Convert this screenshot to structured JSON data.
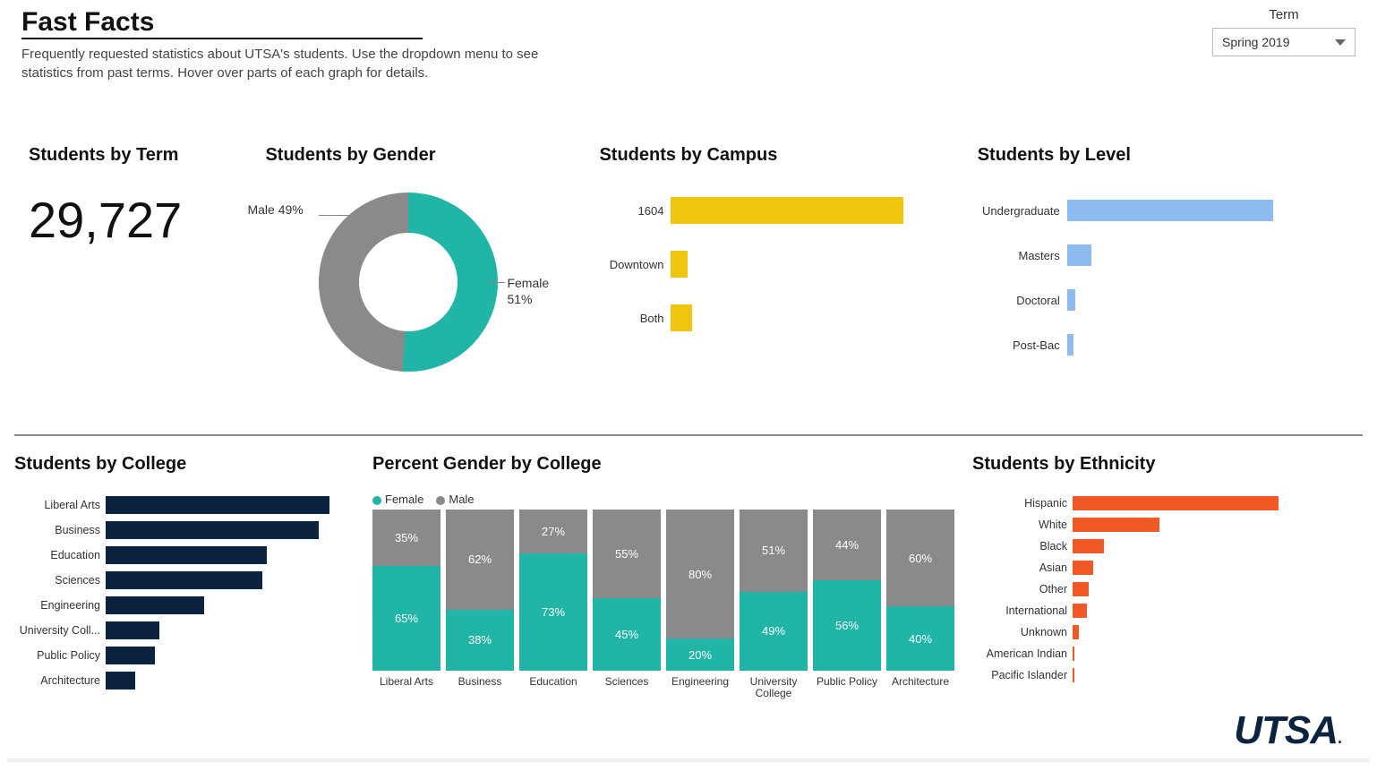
{
  "header": {
    "title": "Fast Facts",
    "subtitle": "Frequently requested statistics about UTSA's students. Use the dropdown menu to see statistics from past terms. Hover over parts of each graph for details.",
    "term_label": "Term",
    "term_value": "Spring 2019"
  },
  "colors": {
    "teal": "#21b5a7",
    "gray": "#8a8a8a",
    "yellow": "#f1c40f",
    "lightblue": "#8fbcf0",
    "navy": "#0c2340",
    "orange": "#f15a24",
    "text": "#222222",
    "background": "#ffffff"
  },
  "students_by_term": {
    "title": "Students by Term",
    "value": "29,727",
    "fontsize": 56
  },
  "students_by_gender": {
    "title": "Students by Gender",
    "type": "donut",
    "slices": [
      {
        "label": "Female 51%",
        "value": 51,
        "color": "#21b5a7"
      },
      {
        "label": "Male 49%",
        "value": 49,
        "color": "#8a8a8a"
      }
    ]
  },
  "students_by_campus": {
    "title": "Students by Campus",
    "type": "hbar",
    "color": "#f1c40f",
    "max": 100,
    "label_width": 80,
    "rows": [
      {
        "label": "1604",
        "value": 100
      },
      {
        "label": "Downtown",
        "value": 7
      },
      {
        "label": "Both",
        "value": 9
      }
    ]
  },
  "students_by_level": {
    "title": "Students by Level",
    "type": "hbar",
    "color": "#8fbcf0",
    "max": 100,
    "label_width": 100,
    "rows": [
      {
        "label": "Undergraduate",
        "value": 100
      },
      {
        "label": "Masters",
        "value": 12
      },
      {
        "label": "Doctoral",
        "value": 4
      },
      {
        "label": "Post-Bac",
        "value": 3
      }
    ]
  },
  "students_by_college": {
    "title": "Students by College",
    "type": "hbar",
    "color": "#0c2340",
    "max": 100,
    "rows": [
      {
        "label": "Liberal Arts",
        "value": 100
      },
      {
        "label": "Business",
        "value": 95
      },
      {
        "label": "Education",
        "value": 72
      },
      {
        "label": "Sciences",
        "value": 70
      },
      {
        "label": "Engineering",
        "value": 44
      },
      {
        "label": "University Coll...",
        "value": 24
      },
      {
        "label": "Public Policy",
        "value": 22
      },
      {
        "label": "Architecture",
        "value": 13
      }
    ]
  },
  "percent_gender_by_college": {
    "title": "Percent Gender by College",
    "type": "stacked_bar",
    "legend": [
      {
        "label": "Female",
        "color": "#21b5a7"
      },
      {
        "label": "Male",
        "color": "#8a8a8a"
      }
    ],
    "categories": [
      "Liberal Arts",
      "Business",
      "Education",
      "Sciences",
      "Engineering",
      "University College",
      "Public Policy",
      "Architecture"
    ],
    "female": [
      65,
      38,
      73,
      45,
      20,
      49,
      56,
      40
    ],
    "male": [
      35,
      62,
      27,
      55,
      80,
      51,
      44,
      60
    ]
  },
  "students_by_ethnicity": {
    "title": "Students by Ethnicity",
    "type": "hbar",
    "color": "#f15a24",
    "max": 100,
    "rows": [
      {
        "label": "Hispanic",
        "value": 100
      },
      {
        "label": "White",
        "value": 42
      },
      {
        "label": "Black",
        "value": 15
      },
      {
        "label": "Asian",
        "value": 10
      },
      {
        "label": "Other",
        "value": 8
      },
      {
        "label": "International",
        "value": 7
      },
      {
        "label": "Unknown",
        "value": 3
      },
      {
        "label": "American Indian",
        "value": 1
      },
      {
        "label": "Pacific Islander",
        "value": 1
      }
    ]
  },
  "logo_text": "UTSA"
}
